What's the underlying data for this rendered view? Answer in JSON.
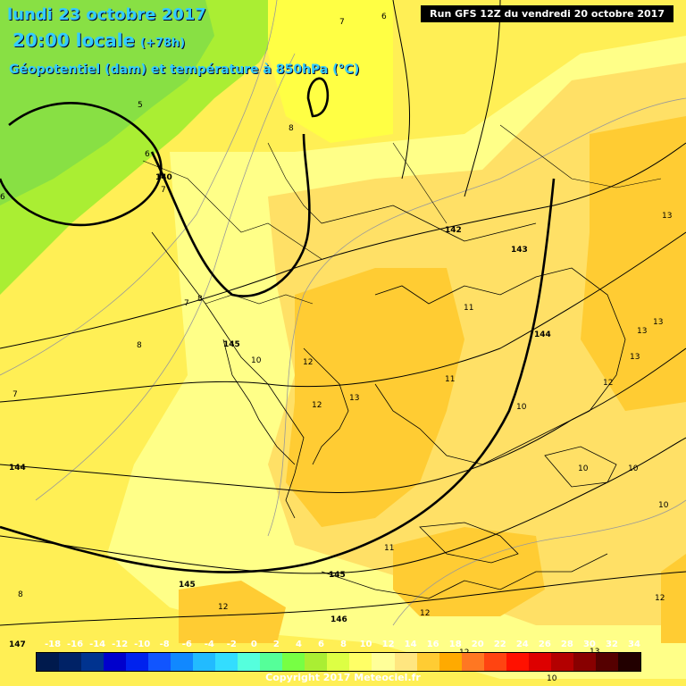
{
  "header": {
    "date": "lundi 23 octobre 2017",
    "time": "20:00 locale",
    "offset": "(+78h)",
    "parameter": "Géopotentiel (dam) et température à 850hPa (°C)"
  },
  "run_info": "Run GFS 12Z du vendredi 20 octobre 2017",
  "copyright": "Copyright 2017 Meteociel.fr",
  "colors": {
    "ocean_dark": "#000000",
    "temp_5": "#88ee44",
    "temp_6": "#aaee33",
    "temp_8": "#eeff33",
    "temp_10": "#ffff66",
    "temp_12": "#ffe066",
    "temp_14": "#ffcc33",
    "temp_16": "#ffbb11"
  },
  "legend": {
    "labels": [
      "-18",
      "-16",
      "-14",
      "-12",
      "-10",
      "-8",
      "-6",
      "-4",
      "-2",
      "0",
      "2",
      "4",
      "6",
      "8",
      "10",
      "12",
      "14",
      "16",
      "18",
      "20",
      "22",
      "24",
      "26",
      "28",
      "30",
      "32",
      "34"
    ],
    "colors": [
      "#001a4d",
      "#002266",
      "#00338f",
      "#0000cc",
      "#0022ee",
      "#1155ff",
      "#1188ff",
      "#22bbff",
      "#33ddff",
      "#55ffdd",
      "#55ff99",
      "#77ff44",
      "#aaee33",
      "#ddff44",
      "#ffff66",
      "#ffff99",
      "#ffe680",
      "#ffcc33",
      "#ffaa00",
      "#ff7722",
      "#ff4411",
      "#ff1100",
      "#dd0000",
      "#b30000",
      "#880000",
      "#550000",
      "#220000"
    ]
  },
  "labels": {
    "geopotential": [
      {
        "text": "140"
      },
      {
        "text": "142"
      },
      {
        "text": "143"
      },
      {
        "text": "144"
      },
      {
        "text": "144"
      },
      {
        "text": "145"
      },
      {
        "text": "145"
      },
      {
        "text": "145"
      },
      {
        "text": "146"
      },
      {
        "text": "147"
      }
    ],
    "temperature": [
      {
        "text": "7"
      },
      {
        "text": "6"
      },
      {
        "text": "5"
      },
      {
        "text": "6"
      },
      {
        "text": "8"
      },
      {
        "text": "7"
      },
      {
        "text": "8"
      },
      {
        "text": "7"
      },
      {
        "text": "8"
      },
      {
        "text": "7"
      },
      {
        "text": "8"
      },
      {
        "text": "10"
      },
      {
        "text": "12"
      },
      {
        "text": "12"
      },
      {
        "text": "13"
      },
      {
        "text": "11"
      },
      {
        "text": "11"
      },
      {
        "text": "10"
      },
      {
        "text": "13"
      },
      {
        "text": "13"
      },
      {
        "text": "13"
      },
      {
        "text": "13"
      },
      {
        "text": "12"
      },
      {
        "text": "10"
      },
      {
        "text": "10"
      },
      {
        "text": "10"
      },
      {
        "text": "11"
      },
      {
        "text": "12"
      },
      {
        "text": "12"
      },
      {
        "text": "12"
      },
      {
        "text": "12"
      },
      {
        "text": "10"
      },
      {
        "text": "6"
      },
      {
        "text": "13"
      }
    ]
  }
}
